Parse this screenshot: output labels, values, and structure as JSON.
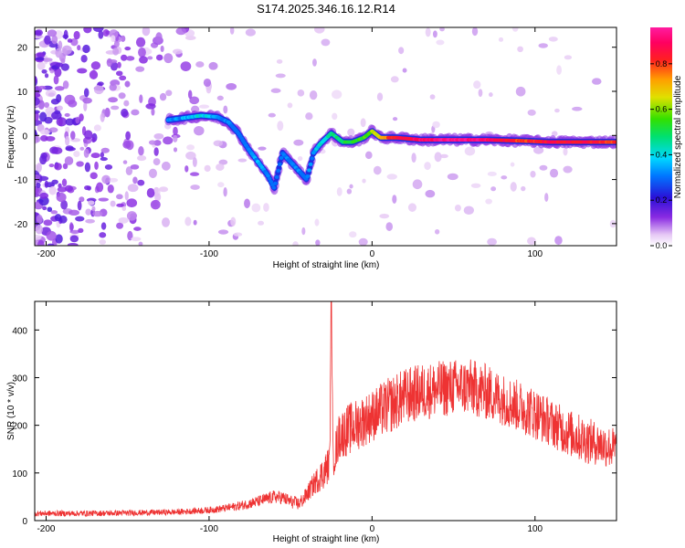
{
  "title": "S174.2025.346.16.12.R14",
  "chart_data": [
    {
      "type": "heatmap",
      "title": "S174.2025.346.16.12.R14",
      "xlabel": "Height of straight line (km)",
      "ylabel": "Frequency (Hz)",
      "xlim": [
        -207,
        150
      ],
      "ylim": [
        -25,
        24.5
      ],
      "xticks": [
        -200,
        -100,
        0,
        100
      ],
      "xtick_labels": [
        "-200",
        "-100",
        "0",
        "100"
      ],
      "yticks": [
        -20,
        -10,
        0,
        10,
        20
      ],
      "ytick_labels": [
        "-20",
        "-10",
        "0",
        "10",
        "20"
      ],
      "grid": false,
      "colorbar": {
        "label": "Normalized spectral amplitude",
        "range": [
          0,
          0.96
        ],
        "ticks": [
          0.0,
          0.2,
          0.4,
          0.6,
          0.8
        ],
        "tick_labels": [
          "0.0",
          "0.2",
          "0.4",
          "0.6",
          "0.8"
        ],
        "colormap": "rainbow (purple-blue-cyan-green-yellow-red-magenta)"
      },
      "ridge": {
        "description": "Dominant frequency ridge vs height",
        "x": [
          -125,
          -115,
          -105,
          -95,
          -88,
          -82,
          -76,
          -70,
          -64,
          -60,
          -55,
          -50,
          -45,
          -40,
          -36,
          -32,
          -25,
          -18,
          -12,
          -5,
          0,
          5,
          15,
          30,
          50,
          70,
          90,
          110,
          130,
          150
        ],
        "y": [
          3.5,
          4.0,
          4.5,
          4.2,
          3.0,
          0.5,
          -3.0,
          -6.0,
          -9.0,
          -12.0,
          -4.0,
          -6.0,
          -8.0,
          -10.0,
          -4.0,
          -2.0,
          0.5,
          -1.5,
          -1.5,
          -0.5,
          1.0,
          -0.5,
          -0.5,
          -1.0,
          -1.0,
          -1.0,
          -1.2,
          -1.5,
          -1.5,
          -1.5
        ],
        "amplitude": [
          0.3,
          0.35,
          0.4,
          0.35,
          0.3,
          0.25,
          0.3,
          0.35,
          0.3,
          0.25,
          0.3,
          0.3,
          0.3,
          0.3,
          0.35,
          0.4,
          0.45,
          0.5,
          0.5,
          0.55,
          0.6,
          0.7,
          0.85,
          0.9,
          0.95,
          0.9,
          0.8,
          0.85,
          0.85,
          0.8
        ]
      },
      "background_noise": "scattered low-amplitude purple/violet blobs, densest for height < -100 km"
    },
    {
      "type": "line",
      "xlabel": "Height of straight line (km)",
      "ylabel": "SNR (10 * v/v)",
      "xlim": [
        -207,
        150
      ],
      "ylim": [
        0,
        460
      ],
      "xticks": [
        -200,
        -100,
        0,
        100
      ],
      "xtick_labels": [
        "-200",
        "-100",
        "0",
        "100"
      ],
      "yticks": [
        0,
        100,
        200,
        300,
        400
      ],
      "ytick_labels": [
        "0",
        "100",
        "200",
        "300",
        "400"
      ],
      "grid": false,
      "series": [
        {
          "name": "SNR",
          "color": "#ee3333",
          "x": [
            -207,
            -180,
            -150,
            -120,
            -100,
            -90,
            -80,
            -70,
            -60,
            -55,
            -50,
            -45,
            -42,
            -40,
            -35,
            -30,
            -26,
            -25,
            -24,
            -22,
            -20,
            -15,
            -10,
            -5,
            0,
            10,
            20,
            30,
            40,
            50,
            60,
            70,
            80,
            90,
            100,
            110,
            120,
            130,
            140,
            150
          ],
          "values": [
            15,
            15,
            16,
            18,
            22,
            26,
            32,
            40,
            50,
            48,
            40,
            35,
            45,
            55,
            80,
            100,
            120,
            460,
            130,
            150,
            180,
            190,
            200,
            210,
            220,
            240,
            260,
            270,
            275,
            280,
            280,
            270,
            255,
            240,
            225,
            205,
            185,
            170,
            160,
            150
          ],
          "noise_amplitude": [
            6,
            6,
            6,
            6,
            7,
            8,
            10,
            12,
            14,
            14,
            14,
            14,
            16,
            18,
            25,
            35,
            40,
            40,
            40,
            45,
            50,
            55,
            55,
            55,
            55,
            60,
            60,
            60,
            60,
            60,
            60,
            60,
            55,
            55,
            55,
            50,
            50,
            50,
            45,
            45
          ]
        }
      ]
    }
  ]
}
